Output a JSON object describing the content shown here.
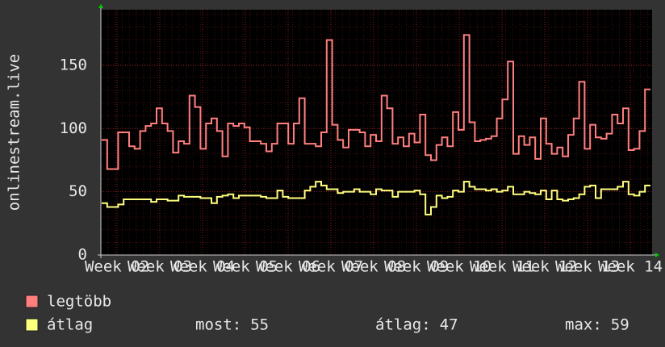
{
  "chart_data": {
    "type": "line",
    "step": true,
    "ylabel": "onlinestream.live",
    "ylim": [
      0,
      194
    ],
    "yticks": [
      0,
      50,
      100,
      150
    ],
    "grid": true,
    "xticks": [
      "Week 02",
      "Week 03",
      "Week 04",
      "Week 05",
      "Week 06",
      "Week 07",
      "Week 08",
      "Week 09",
      "Week 10",
      "Week 11",
      "Week 12",
      "Week 13",
      "Week 14"
    ],
    "series": [
      {
        "name": "legtöbb",
        "color": "#ff7f7f",
        "values": [
          91,
          68,
          68,
          97,
          97,
          86,
          84,
          98,
          102,
          104,
          116,
          104,
          98,
          81,
          90,
          88,
          126,
          117,
          84,
          104,
          108,
          98,
          78,
          104,
          102,
          104,
          101,
          90,
          90,
          88,
          82,
          88,
          104,
          104,
          88,
          104,
          124,
          88,
          88,
          86,
          97,
          170,
          103,
          91,
          85,
          99,
          99,
          97,
          86,
          95,
          90,
          126,
          116,
          88,
          93,
          86,
          96,
          89,
          111,
          79,
          75,
          87,
          93,
          86,
          113,
          99,
          174,
          105,
          90,
          91,
          92,
          94,
          108,
          123,
          153,
          80,
          94,
          87,
          93,
          76,
          108,
          88,
          80,
          85,
          78,
          95,
          108,
          137,
          84,
          103,
          93,
          92,
          96,
          111,
          104,
          116,
          83,
          84,
          98,
          131
        ]
      },
      {
        "name": "átlag",
        "color": "#ffff7f",
        "values": [
          41,
          38,
          38,
          40,
          44,
          44,
          44,
          44,
          44,
          42,
          44,
          44,
          43,
          43,
          47,
          46,
          46,
          46,
          45,
          45,
          41,
          46,
          47,
          48,
          45,
          47,
          47,
          47,
          47,
          46,
          45,
          45,
          51,
          46,
          45,
          45,
          45,
          51,
          54,
          58,
          55,
          52,
          52,
          49,
          50,
          50,
          52,
          50,
          50,
          48,
          52,
          51,
          51,
          46,
          50,
          50,
          50,
          51,
          48,
          32,
          38,
          47,
          45,
          46,
          51,
          50,
          58,
          54,
          52,
          52,
          51,
          52,
          50,
          51,
          54,
          48,
          48,
          50,
          49,
          48,
          51,
          44,
          51,
          44,
          43,
          44,
          45,
          48,
          54,
          55,
          45,
          52,
          52,
          52,
          54,
          58,
          48,
          47,
          50,
          55
        ]
      }
    ],
    "stats": [
      {
        "label": "most:",
        "value": 55
      },
      {
        "label": "átlag:",
        "value": 47
      },
      {
        "label": "max:",
        "value": 59
      }
    ]
  }
}
